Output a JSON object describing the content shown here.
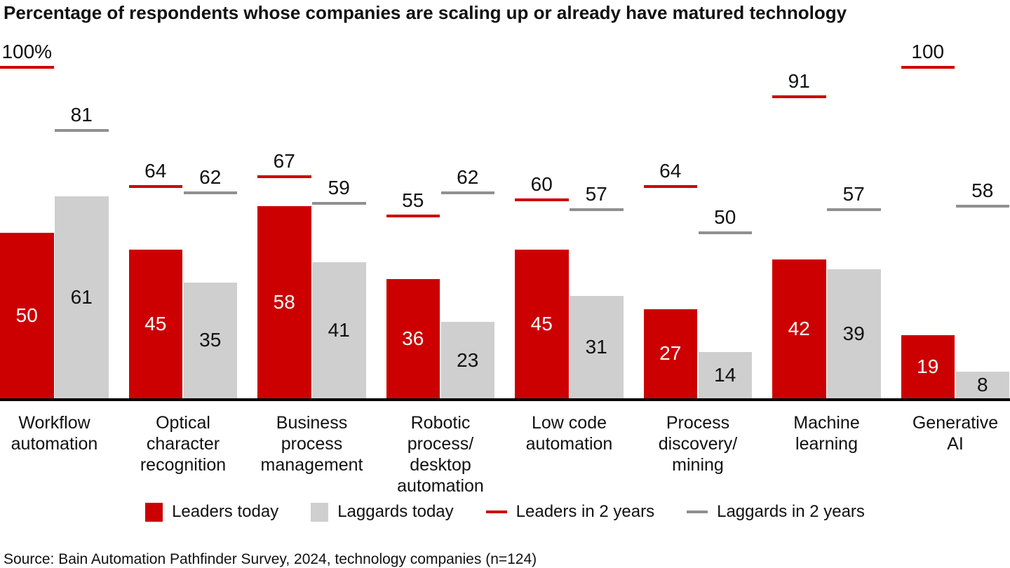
{
  "title": "Percentage of respondents whose companies are scaling up or already have matured technology",
  "source": "Source: Bain Automation Pathfinder Survey, 2024, technology companies (n=124)",
  "colors": {
    "leader_red": "#cc0000",
    "laggard_gray": "#cfcfcf",
    "target_gray": "#909090",
    "axis_black": "#000000",
    "text_black": "#111111",
    "text_white": "#ffffff"
  },
  "chart_data": {
    "type": "bar",
    "title": "Percentage of respondents whose companies are scaling up or already have matured technology",
    "categories": [
      [
        "Workflow",
        "automation"
      ],
      [
        "Optical",
        "character",
        "recognition"
      ],
      [
        "Business",
        "process",
        "management"
      ],
      [
        "Robotic",
        "process/",
        "desktop",
        "automation"
      ],
      [
        "Low code",
        "automation"
      ],
      [
        "Process",
        "discovery/",
        "mining"
      ],
      [
        "Machine",
        "learning"
      ],
      [
        "Generative",
        "AI"
      ]
    ],
    "series": [
      {
        "name": "Leaders today",
        "kind": "bar",
        "color": "#cc0000",
        "label_color": "#ffffff",
        "values": [
          50,
          45,
          58,
          36,
          45,
          27,
          42,
          19
        ]
      },
      {
        "name": "Laggards today",
        "kind": "bar",
        "color": "#cfcfcf",
        "label_color": "#111111",
        "values": [
          61,
          35,
          41,
          23,
          31,
          14,
          39,
          8
        ]
      },
      {
        "name": "Leaders in 2 years",
        "kind": "target-line",
        "color": "#cc0000",
        "values": [
          100,
          64,
          67,
          55,
          60,
          64,
          91,
          100
        ],
        "labels": [
          "100%",
          "64",
          "67",
          "55",
          "60",
          "64",
          "91",
          "100"
        ]
      },
      {
        "name": "Laggards in 2 years",
        "kind": "target-line",
        "color": "#909090",
        "values": [
          81,
          62,
          59,
          62,
          57,
          50,
          57,
          58
        ],
        "labels": [
          "81",
          "62",
          "59",
          "62",
          "57",
          "50",
          "57",
          "58"
        ]
      }
    ],
    "ylim": [
      0,
      100
    ],
    "gridlines": false,
    "y_axis_shown": false,
    "legend_position": "bottom"
  },
  "legend": {
    "items": [
      {
        "label": "Leaders today",
        "swatch": "square",
        "color": "#cc0000"
      },
      {
        "label": "Laggards today",
        "swatch": "square",
        "color": "#cfcfcf"
      },
      {
        "label": "Leaders in 2 years",
        "swatch": "line",
        "color": "#cc0000"
      },
      {
        "label": "Laggards in 2 years",
        "swatch": "line",
        "color": "#909090"
      }
    ]
  }
}
